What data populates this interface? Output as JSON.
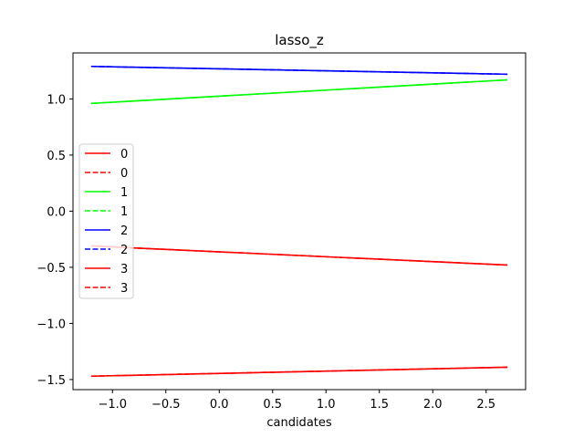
{
  "chart_data": {
    "type": "line",
    "title": "lasso_z",
    "xlabel": "candidates",
    "ylabel": "",
    "xlim": [
      -1.37,
      2.87
    ],
    "ylim": [
      -1.59,
      1.41
    ],
    "xticks": [
      -1.0,
      -0.5,
      0.0,
      0.5,
      1.0,
      1.5,
      2.0,
      2.5
    ],
    "xtick_labels": [
      "−1.0",
      "−0.5",
      "0.0",
      "0.5",
      "1.0",
      "1.5",
      "2.0",
      "2.5"
    ],
    "yticks": [
      -1.5,
      -1.0,
      -0.5,
      0.0,
      0.5,
      1.0
    ],
    "ytick_labels": [
      "−1.5",
      "−1.0",
      "−0.5",
      "0.0",
      "0.5",
      "1.0"
    ],
    "grid": false,
    "legend_position": "center-left",
    "series": [
      {
        "name": "0",
        "color": "#ff0000",
        "style": "solid",
        "x": [
          -1.2,
          2.7
        ],
        "y": [
          -0.31,
          -0.48
        ]
      },
      {
        "name": "0",
        "color": "#ff0000",
        "style": "dashed",
        "x": [
          -1.2,
          2.7
        ],
        "y": [
          -0.31,
          -0.48
        ]
      },
      {
        "name": "1",
        "color": "#00ff00",
        "style": "solid",
        "x": [
          -1.2,
          2.7
        ],
        "y": [
          0.96,
          1.17
        ]
      },
      {
        "name": "1",
        "color": "#00ff00",
        "style": "dashed",
        "x": [
          -1.2,
          2.7
        ],
        "y": [
          0.96,
          1.17
        ]
      },
      {
        "name": "2",
        "color": "#0000ff",
        "style": "solid",
        "x": [
          -1.2,
          2.7
        ],
        "y": [
          1.29,
          1.22
        ]
      },
      {
        "name": "2",
        "color": "#0000ff",
        "style": "dashed",
        "x": [
          -1.2,
          2.7
        ],
        "y": [
          1.29,
          1.22
        ]
      },
      {
        "name": "3",
        "color": "#ff0000",
        "style": "solid",
        "x": [
          -1.2,
          2.7
        ],
        "y": [
          -1.47,
          -1.39
        ]
      },
      {
        "name": "3",
        "color": "#ff0000",
        "style": "dashed",
        "x": [
          -1.2,
          2.7
        ],
        "y": [
          -1.47,
          -1.39
        ]
      }
    ]
  }
}
